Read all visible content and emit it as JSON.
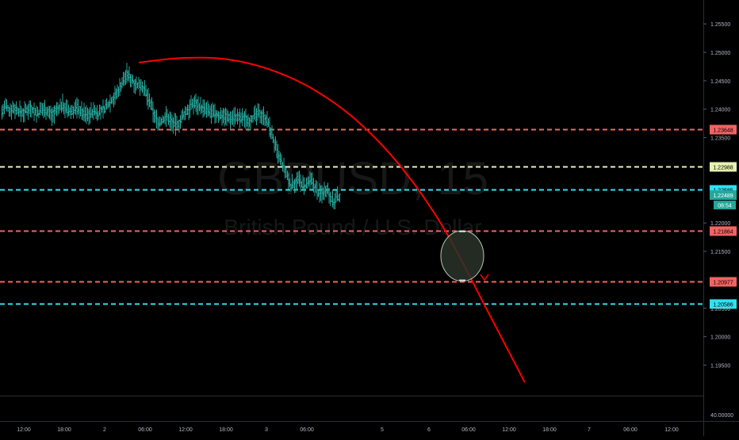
{
  "watermark": {
    "symbol": "GBPUSD, 15",
    "description": "British Pound / U.S. Dollar"
  },
  "colors": {
    "background": "#000000",
    "candle": "#26a69a",
    "curve": "#ff0000",
    "red_line": "#f26363",
    "yellow_line": "#e6f2b0",
    "cyan_line": "#32e0f0",
    "axis_text": "#b2b5be",
    "axis_border": "#2a2e39"
  },
  "chart_data": {
    "type": "line",
    "y_axis": {
      "ylim": [
        1.1895,
        1.2592
      ],
      "ticks": [
        "1.25500",
        "1.25000",
        "1.24500",
        "1.24000",
        "1.23500",
        "1.22000",
        "1.21500",
        "1.20500",
        "1.20000",
        "1.19500"
      ]
    },
    "x_axis": {
      "ticks": [
        "12:00",
        "18:00",
        "2",
        "06:00",
        "12:00",
        "18:00",
        "3",
        "06:00",
        "5",
        "6",
        "06:00",
        "12:00",
        "18:00",
        "7",
        "06:00",
        "12:00"
      ]
    },
    "indicator_pane": {
      "value_label": "40.00000"
    },
    "price_levels": [
      {
        "value": 1.23648,
        "label": "1.23648",
        "color": "red"
      },
      {
        "value": 1.22988,
        "label": "1.22988",
        "color": "yellow"
      },
      {
        "value": 1.22585,
        "label": "1.22585",
        "color": "cyan"
      },
      {
        "value": 1.21864,
        "label": "1.21864",
        "color": "red"
      },
      {
        "value": 1.20977,
        "label": "1.20977",
        "color": "red"
      },
      {
        "value": 1.20586,
        "label": "1.20586",
        "color": "cyan"
      }
    ],
    "current_price": {
      "value": 1.22489,
      "label": "1.22489",
      "countdown": "08:54"
    },
    "price_series": [
      1.2395,
      1.2405,
      1.2398,
      1.2402,
      1.24,
      1.2396,
      1.2393,
      1.2399,
      1.2404,
      1.2397,
      1.2392,
      1.2398,
      1.2401,
      1.2395,
      1.239,
      1.2396,
      1.2402,
      1.2408,
      1.24,
      1.2394,
      1.2399,
      1.2403,
      1.2397,
      1.2392,
      1.2389,
      1.2394,
      1.2396,
      1.2393,
      1.2398,
      1.2403,
      1.2411,
      1.2418,
      1.2425,
      1.2438,
      1.245,
      1.2462,
      1.2455,
      1.2448,
      1.2441,
      1.2445,
      1.2432,
      1.2418,
      1.2402,
      1.2385,
      1.2376,
      1.238,
      1.2388,
      1.2382,
      1.2375,
      1.2372,
      1.2378,
      1.239,
      1.2398,
      1.2405,
      1.2412,
      1.2408,
      1.2402,
      1.2398,
      1.2396,
      1.2392,
      1.239,
      1.2388,
      1.2391,
      1.2386,
      1.2384,
      1.2388,
      1.2385,
      1.2383,
      1.2385,
      1.238,
      1.2384,
      1.2388,
      1.2392,
      1.239,
      1.2384,
      1.2368,
      1.2348,
      1.2325,
      1.231,
      1.2296,
      1.228,
      1.2265,
      1.227,
      1.2276,
      1.2268,
      1.2262,
      1.227,
      1.2272,
      1.226,
      1.225,
      1.2255,
      1.2262,
      1.2248,
      1.2235,
      1.2245
    ],
    "projection_curve": [
      {
        "bar_offset": 0,
        "price": 1.2482
      },
      {
        "bar_offset": 20,
        "price": 1.249
      },
      {
        "bar_offset": 40,
        "price": 1.2488
      },
      {
        "bar_offset": 60,
        "price": 1.247
      },
      {
        "bar_offset": 80,
        "price": 1.2435
      },
      {
        "bar_offset": 100,
        "price": 1.238
      },
      {
        "bar_offset": 120,
        "price": 1.23
      },
      {
        "bar_offset": 140,
        "price": 1.219
      },
      {
        "bar_offset": 160,
        "price": 1.2045
      },
      {
        "bar_offset": 177,
        "price": 1.192
      }
    ],
    "target_ellipse": {
      "top": 1.21864,
      "bottom": 1.20977
    }
  }
}
